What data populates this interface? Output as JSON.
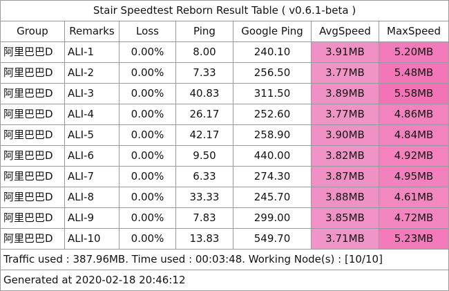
{
  "title": "Stair Speedtest Reborn Result Table ( v0.6.1-beta )",
  "columns": [
    "Group",
    "Remarks",
    "Loss",
    "Ping",
    "Google Ping",
    "AvgSpeed",
    "MaxSpeed"
  ],
  "rows": [
    {
      "group": "阿里巴巴D",
      "remarks": "ALI-1",
      "loss": "0.00%",
      "ping": "8.00",
      "google_ping": "240.10",
      "avg": "3.91MB",
      "avg_color": "#f090c4",
      "max": "5.20MB",
      "max_color": "#f37abb"
    },
    {
      "group": "阿里巴巴D",
      "remarks": "ALI-2",
      "loss": "0.00%",
      "ping": "7.33",
      "google_ping": "256.50",
      "avg": "3.77MB",
      "avg_color": "#f094c6",
      "max": "5.48MB",
      "max_color": "#f376b8"
    },
    {
      "group": "阿里巴巴D",
      "remarks": "ALI-3",
      "loss": "0.00%",
      "ping": "40.83",
      "google_ping": "311.50",
      "avg": "3.89MB",
      "avg_color": "#f091c5",
      "max": "5.58MB",
      "max_color": "#f274b7"
    },
    {
      "group": "阿里巴巴D",
      "remarks": "ALI-4",
      "loss": "0.00%",
      "ping": "26.17",
      "google_ping": "252.60",
      "avg": "3.77MB",
      "avg_color": "#f094c6",
      "max": "4.86MB",
      "max_color": "#f383bf"
    },
    {
      "group": "阿里巴巴D",
      "remarks": "ALI-5",
      "loss": "0.00%",
      "ping": "42.17",
      "google_ping": "258.90",
      "avg": "3.90MB",
      "avg_color": "#f091c5",
      "max": "4.84MB",
      "max_color": "#f383bf"
    },
    {
      "group": "阿里巴巴D",
      "remarks": "ALI-6",
      "loss": "0.00%",
      "ping": "9.50",
      "google_ping": "440.00",
      "avg": "3.82MB",
      "avg_color": "#f093c6",
      "max": "4.92MB",
      "max_color": "#f382be"
    },
    {
      "group": "阿里巴巴D",
      "remarks": "ALI-7",
      "loss": "0.00%",
      "ping": "6.33",
      "google_ping": "274.30",
      "avg": "3.87MB",
      "avg_color": "#f091c5",
      "max": "4.95MB",
      "max_color": "#f381be"
    },
    {
      "group": "阿里巴巴D",
      "remarks": "ALI-8",
      "loss": "0.00%",
      "ping": "33.33",
      "google_ping": "245.70",
      "avg": "3.88MB",
      "avg_color": "#f091c5",
      "max": "4.61MB",
      "max_color": "#f388c1"
    },
    {
      "group": "阿里巴巴D",
      "remarks": "ALI-9",
      "loss": "0.00%",
      "ping": "7.83",
      "google_ping": "299.00",
      "avg": "3.85MB",
      "avg_color": "#f092c5",
      "max": "4.72MB",
      "max_color": "#f386c0"
    },
    {
      "group": "阿里巴巴D",
      "remarks": "ALI-10",
      "loss": "0.00%",
      "ping": "13.83",
      "google_ping": "549.70",
      "avg": "3.71MB",
      "avg_color": "#f095c7",
      "max": "5.23MB",
      "max_color": "#f37abb"
    }
  ],
  "footer": {
    "traffic": "Traffic used : 387.96MB. Time used : 00:03:48. Working Node(s) : [10/10]",
    "generated": "Generated at 2020-02-18 20:46:12"
  }
}
